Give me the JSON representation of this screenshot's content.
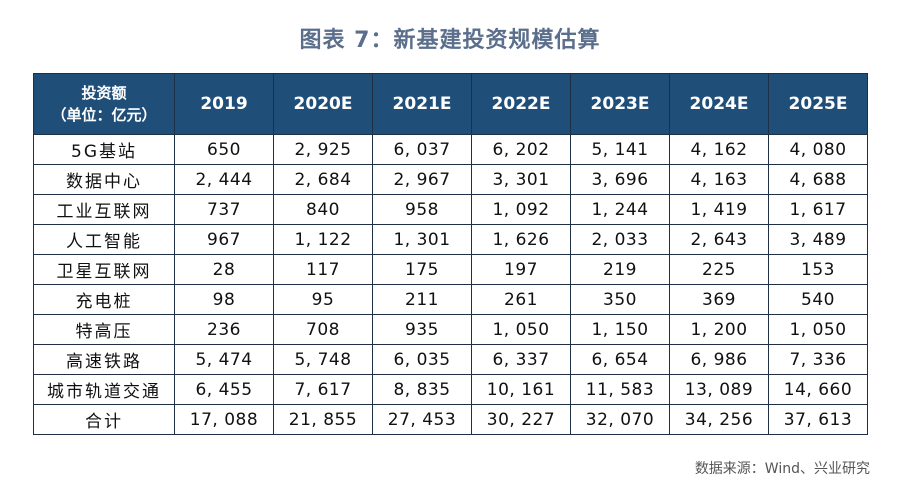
{
  "title": "图表 7：新基建投资规模估算",
  "table": {
    "corner_line1": "投资额",
    "corner_line2": "（单位：亿元）",
    "years": [
      "2019",
      "2020E",
      "2021E",
      "2022E",
      "2023E",
      "2024E",
      "2025E"
    ],
    "rows": [
      {
        "name": "5G基站",
        "values": [
          "650",
          "2, 925",
          "6, 037",
          "6, 202",
          "5, 141",
          "4, 162",
          "4, 080"
        ]
      },
      {
        "name": "数据中心",
        "values": [
          "2, 444",
          "2, 684",
          "2, 967",
          "3, 301",
          "3, 696",
          "4, 163",
          "4, 688"
        ]
      },
      {
        "name": "工业互联网",
        "values": [
          "737",
          "840",
          "958",
          "1, 092",
          "1, 244",
          "1, 419",
          "1, 617"
        ]
      },
      {
        "name": "人工智能",
        "values": [
          "967",
          "1, 122",
          "1, 301",
          "1, 626",
          "2, 033",
          "2, 643",
          "3, 489"
        ]
      },
      {
        "name": "卫星互联网",
        "values": [
          "28",
          "117",
          "175",
          "197",
          "219",
          "225",
          "153"
        ]
      },
      {
        "name": "充电桩",
        "values": [
          "98",
          "95",
          "211",
          "261",
          "350",
          "369",
          "540"
        ]
      },
      {
        "name": "特高压",
        "values": [
          "236",
          "708",
          "935",
          "1, 050",
          "1, 150",
          "1, 200",
          "1, 050"
        ]
      },
      {
        "name": "高速铁路",
        "values": [
          "5, 474",
          "5, 748",
          "6, 035",
          "6, 337",
          "6, 654",
          "6, 986",
          "7, 336"
        ]
      },
      {
        "name": "城市轨道交通",
        "values": [
          "6, 455",
          "7, 617",
          "8, 835",
          "10, 161",
          "11, 583",
          "13, 089",
          "14, 660"
        ]
      },
      {
        "name": "合计",
        "values": [
          "17, 088",
          "21, 855",
          "27, 453",
          "30, 227",
          "32, 070",
          "34, 256",
          "37, 613"
        ]
      }
    ]
  },
  "source": "数据来源：Wind、兴业研究",
  "colors": {
    "header_bg": "#1f4e79",
    "title": "#5b6f8c"
  }
}
